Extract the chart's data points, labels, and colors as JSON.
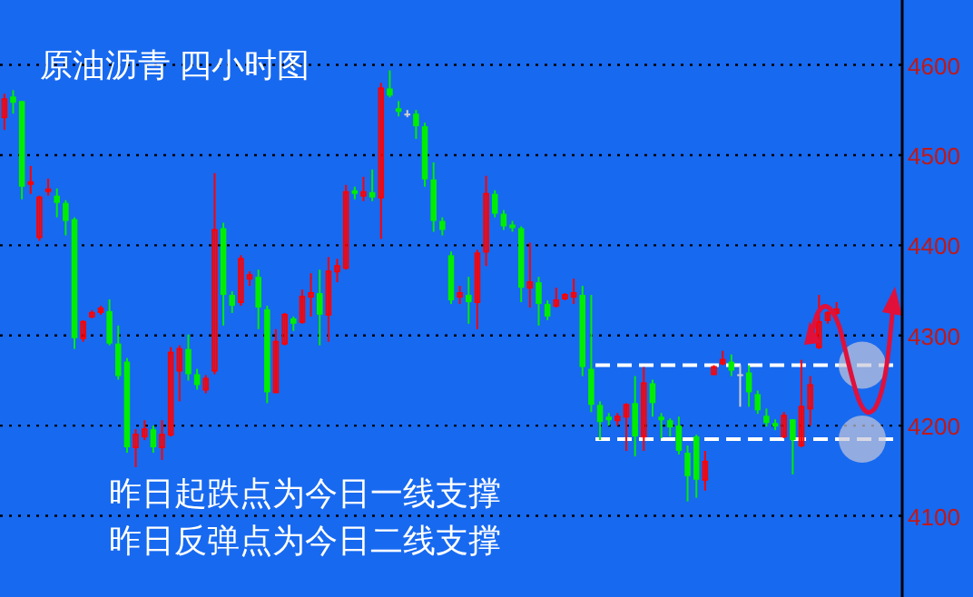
{
  "chart_data": {
    "type": "candlestick",
    "title": "原油沥青 四小时图",
    "annotations": [
      "昨日起跌点为今日一线支撑",
      "昨日反弹点为今日二线支撑"
    ],
    "categories": [
      null,
      null,
      null,
      null,
      null,
      null,
      null,
      null,
      null,
      null,
      null,
      null,
      null,
      null,
      null,
      null,
      null,
      null,
      null,
      null,
      null,
      null,
      null,
      null,
      null,
      null,
      null,
      null,
      null,
      null,
      null,
      null,
      null,
      null,
      null,
      null,
      null,
      null,
      null,
      null,
      null,
      null,
      null,
      null,
      null,
      null,
      null,
      null,
      null,
      null,
      null,
      null,
      null,
      null,
      null,
      null,
      null,
      null,
      null,
      null,
      null,
      null,
      null,
      null,
      null,
      null,
      null,
      null,
      null,
      null,
      null,
      null,
      null,
      null,
      null,
      null,
      null,
      null,
      null,
      null,
      null,
      null,
      null,
      null,
      null,
      null,
      null,
      null,
      null,
      null,
      null,
      null,
      null,
      null,
      null,
      null,
      null,
      null,
      null,
      null,
      null,
      null,
      null
    ],
    "ohlc": [
      [
        4542,
        4568,
        4528,
        4562
      ],
      [
        4565,
        4572,
        4546,
        4558
      ],
      [
        4560,
        4560,
        4451,
        4465
      ],
      [
        4468,
        4488,
        4457,
        4470
      ],
      [
        4409,
        4455,
        4405,
        4453
      ],
      [
        4460,
        4474,
        4455,
        4462
      ],
      [
        4455,
        4463,
        4431,
        4447
      ],
      [
        4447,
        4450,
        4411,
        4427
      ],
      [
        4429,
        4431,
        4285,
        4297
      ],
      [
        4297,
        4317,
        4293,
        4315
      ],
      [
        4321,
        4328,
        4319,
        4325
      ],
      [
        4326,
        4333,
        4323,
        4330
      ],
      [
        4327,
        4340,
        4289,
        4291
      ],
      [
        4291,
        4311,
        4251,
        4255
      ],
      [
        4271,
        4275,
        4170,
        4176
      ],
      [
        4176,
        4196,
        4154,
        4190
      ],
      [
        4188,
        4206,
        4184,
        4196
      ],
      [
        4196,
        4200,
        4170,
        4176
      ],
      [
        4176,
        4206,
        4162,
        4190
      ],
      [
        4190,
        4287,
        4188,
        4281
      ],
      [
        4261,
        4289,
        4227,
        4285
      ],
      [
        4285,
        4301,
        4250,
        4257
      ],
      [
        4257,
        4263,
        4240,
        4245
      ],
      [
        4240,
        4256,
        4236,
        4252
      ],
      [
        4261,
        4480,
        4257,
        4417
      ],
      [
        4419,
        4425,
        4311,
        4345
      ],
      [
        4345,
        4349,
        4325,
        4333
      ],
      [
        4337,
        4389,
        4333,
        4385
      ],
      [
        4363,
        4371,
        4355,
        4367
      ],
      [
        4365,
        4373,
        4307,
        4331
      ],
      [
        4329,
        4333,
        4225,
        4237
      ],
      [
        4237,
        4307,
        4237,
        4293
      ],
      [
        4291,
        4325,
        4289,
        4323
      ],
      [
        4319,
        4321,
        4305,
        4313
      ],
      [
        4315,
        4351,
        4313,
        4343
      ],
      [
        4343,
        4369,
        4321,
        4347
      ],
      [
        4347,
        4373,
        4289,
        4323
      ],
      [
        4323,
        4387,
        4293,
        4371
      ],
      [
        4371,
        4385,
        4359,
        4377
      ],
      [
        4375,
        4467,
        4373,
        4459
      ],
      [
        4461,
        4465,
        4451,
        4457
      ],
      [
        4455,
        4476,
        4449,
        4459
      ],
      [
        4459,
        4484,
        4449,
        4453
      ],
      [
        4453,
        4580,
        4407,
        4574
      ],
      [
        4574,
        4594,
        4564,
        4566
      ],
      [
        4552,
        4560,
        4543,
        4548
      ],
      [
        4546,
        4550,
        4542,
        4546
      ],
      [
        4546,
        4550,
        4518,
        4532
      ],
      [
        4532,
        4536,
        4465,
        4473
      ],
      [
        4473,
        4492,
        4415,
        4427
      ],
      [
        4427,
        4431,
        4411,
        4417
      ],
      [
        4389,
        4393,
        4335,
        4339
      ],
      [
        4343,
        4355,
        4335,
        4347
      ],
      [
        4345,
        4365,
        4313,
        4337
      ],
      [
        4337,
        4395,
        4307,
        4391
      ],
      [
        4393,
        4477,
        4377,
        4457
      ],
      [
        4457,
        4461,
        4431,
        4435
      ],
      [
        4435,
        4439,
        4417,
        4421
      ],
      [
        4423,
        4427,
        4415,
        4419
      ],
      [
        4419,
        4421,
        4337,
        4353
      ],
      [
        4353,
        4403,
        4331,
        4359
      ],
      [
        4359,
        4365,
        4311,
        4335
      ],
      [
        4335,
        4339,
        4317,
        4321
      ],
      [
        4333,
        4353,
        4331,
        4339
      ],
      [
        4341,
        4347,
        4339,
        4345
      ],
      [
        4343,
        4363,
        4335,
        4347
      ],
      [
        4345,
        4355,
        4255,
        4265
      ],
      [
        4263,
        4345,
        4215,
        4223
      ],
      [
        4223,
        4227,
        4184,
        4204
      ],
      [
        4210,
        4214,
        4200,
        4206
      ],
      [
        4206,
        4214,
        4200,
        4210
      ],
      [
        4210,
        4225,
        4172,
        4223
      ],
      [
        4225,
        4255,
        4166,
        4188
      ],
      [
        4188,
        4265,
        4172,
        4247
      ],
      [
        4247,
        4251,
        4210,
        4225
      ],
      [
        4210,
        4214,
        4186,
        4206
      ],
      [
        4206,
        4208,
        4188,
        4198
      ],
      [
        4200,
        4210,
        4168,
        4172
      ],
      [
        4170,
        4178,
        4116,
        4144
      ],
      [
        4188,
        4190,
        4120,
        4140
      ],
      [
        4140,
        4172,
        4128,
        4160
      ],
      [
        4257,
        4267,
        4257,
        4265
      ],
      [
        4269,
        4283,
        4267,
        4273
      ],
      [
        4271,
        4279,
        4255,
        4261
      ],
      [
        4257,
        4267,
        4221,
        4257
      ],
      [
        4259,
        4267,
        4221,
        4237
      ],
      [
        4235,
        4239,
        4213,
        4217
      ],
      [
        4211,
        4219,
        4199,
        4203
      ],
      [
        4203,
        4207,
        4195,
        4199
      ],
      [
        4188,
        4215,
        4186,
        4211
      ],
      [
        4207,
        4207,
        4146,
        4184
      ],
      [
        4178,
        4273,
        4176,
        4221
      ],
      [
        4219,
        4255,
        4200,
        4245
      ],
      [
        4287,
        4345,
        4285,
        4315
      ],
      [
        4317,
        4327,
        4313,
        4325
      ],
      [
        4325,
        4337,
        4323,
        4329
      ],
      null,
      null,
      null,
      null,
      null,
      null,
      null
    ],
    "ylim": [
      4010,
      4672
    ],
    "yticks": [
      4100,
      4200,
      4300,
      4400,
      4500,
      4600
    ],
    "grid": "y",
    "tick_labels": "y",
    "ref_lines": [
      {
        "axis": "y",
        "value": 4267,
        "color": "#ffffff",
        "line_style": "dashed"
      },
      {
        "axis": "y",
        "value": 4185,
        "color": "#ffffff",
        "line_style": "dashed"
      }
    ]
  }
}
